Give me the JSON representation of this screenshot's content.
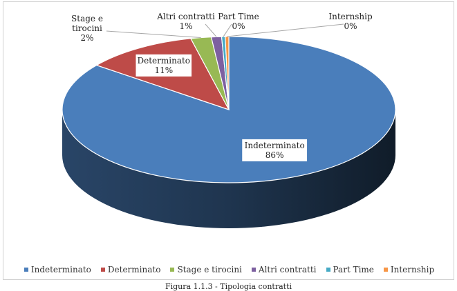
{
  "chart_data": {
    "type": "pie",
    "style": "3d",
    "categories": [
      "Indeterminato",
      "Determinato",
      "Stage e tirocini",
      "Altri contratti",
      "Part Time",
      "Internship"
    ],
    "values": [
      86,
      11,
      2,
      1,
      0,
      0
    ],
    "data_labels": [
      {
        "name": "Indeterminato",
        "value": "86%"
      },
      {
        "name": "Determinato",
        "value": "11%"
      },
      {
        "name": "Stage e tirocini",
        "value": "2%"
      },
      {
        "name": "Altri contratti",
        "value": "1%"
      },
      {
        "name": "Part Time",
        "value": "0%"
      },
      {
        "name": "Internship",
        "value": "0%"
      }
    ],
    "colors": [
      "#4a7ebb",
      "#be4b48",
      "#98b954",
      "#7d60a0",
      "#46aac5",
      "#f79646"
    ],
    "legend": {
      "position": "bottom",
      "entries": [
        "Indeterminato",
        "Determinato",
        "Stage e tirocini",
        "Altri contratti",
        "Part Time",
        "Internship"
      ]
    }
  },
  "caption": "Figura 1.1.3 - Tipologia contratti"
}
